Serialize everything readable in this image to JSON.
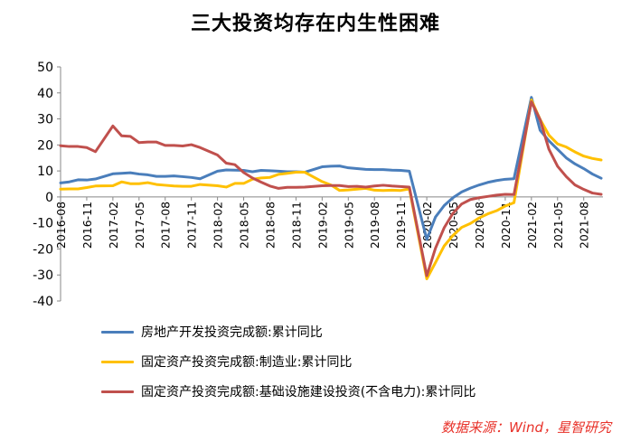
{
  "chart_data": {
    "type": "line",
    "title": "三大投资均存在内生性困难",
    "source_note": "数据来源：Wind，星智研究",
    "ylim": [
      -40,
      50
    ],
    "yticks": [
      -40,
      -30,
      -20,
      -10,
      0,
      10,
      20,
      30,
      40,
      50
    ],
    "x": [
      "2016-08",
      "2016-09",
      "2016-10",
      "2016-11",
      "2016-12",
      "2017-01",
      "2017-02",
      "2017-03",
      "2017-04",
      "2017-05",
      "2017-06",
      "2017-07",
      "2017-08",
      "2017-09",
      "2017-10",
      "2017-11",
      "2017-12",
      "2018-01",
      "2018-02",
      "2018-03",
      "2018-04",
      "2018-05",
      "2018-06",
      "2018-07",
      "2018-08",
      "2018-09",
      "2018-10",
      "2018-11",
      "2018-12",
      "2019-01",
      "2019-02",
      "2019-03",
      "2019-04",
      "2019-05",
      "2019-06",
      "2019-07",
      "2019-08",
      "2019-09",
      "2019-10",
      "2019-11",
      "2019-12",
      "2020-01",
      "2020-02",
      "2020-03",
      "2020-04",
      "2020-05",
      "2020-06",
      "2020-07",
      "2020-08",
      "2020-09",
      "2020-10",
      "2020-11",
      "2020-12",
      "2021-01",
      "2021-02",
      "2021-03",
      "2021-04",
      "2021-05",
      "2021-06",
      "2021-07",
      "2021-08",
      "2021-09",
      "2021-10"
    ],
    "xtick_labels": [
      "2016-08",
      "2016-11",
      "2017-02",
      "2017-05",
      "2017-08",
      "2017-11",
      "2018-02",
      "2018-05",
      "2018-08",
      "2018-11",
      "2019-02",
      "2019-05",
      "2019-08",
      "2019-11",
      "2020-02",
      "2020-05",
      "2020-08",
      "2020-11",
      "2021-02",
      "2021-05",
      "2021-08"
    ],
    "series": [
      {
        "name": "房地产开发投资完成额:累计同比",
        "color": "#4a7ebb",
        "values": [
          5.4,
          5.8,
          6.6,
          6.5,
          6.9,
          null,
          8.9,
          9.1,
          9.3,
          8.8,
          8.5,
          7.9,
          7.9,
          8.1,
          7.8,
          7.5,
          7.0,
          null,
          9.9,
          10.4,
          10.3,
          10.2,
          9.7,
          10.2,
          10.1,
          9.9,
          9.7,
          9.7,
          9.5,
          null,
          11.6,
          11.8,
          11.9,
          11.2,
          10.9,
          10.6,
          10.5,
          10.5,
          10.3,
          10.2,
          9.9,
          null,
          -16.3,
          -7.7,
          -3.3,
          -0.3,
          1.9,
          3.4,
          4.6,
          5.6,
          6.3,
          6.8,
          7.0,
          null,
          38.3,
          25.6,
          21.6,
          18.3,
          15.0,
          12.7,
          10.9,
          8.8,
          7.2
        ]
      },
      {
        "name": "固定资产投资完成额:制造业:累计同比",
        "color": "#ffc000",
        "values": [
          3.0,
          3.1,
          3.1,
          3.6,
          4.2,
          null,
          4.3,
          5.8,
          5.1,
          5.1,
          5.5,
          4.8,
          4.5,
          4.2,
          4.1,
          4.1,
          4.8,
          null,
          4.3,
          3.8,
          5.2,
          5.2,
          6.8,
          7.3,
          7.5,
          8.7,
          9.1,
          9.5,
          9.5,
          null,
          5.9,
          4.6,
          2.5,
          2.7,
          3.0,
          3.3,
          2.6,
          2.5,
          2.6,
          2.5,
          3.1,
          null,
          -31.5,
          -25.2,
          -18.8,
          -14.8,
          -11.7,
          -10.2,
          -8.1,
          -6.5,
          -5.3,
          -3.5,
          -2.2,
          null,
          37.3,
          29.8,
          23.8,
          20.4,
          19.2,
          17.3,
          15.7,
          14.8,
          14.2
        ]
      },
      {
        "name": "固定资产投资完成额:基础设施建设投资(不含电力):累计同比",
        "color": "#c0504d",
        "values": [
          19.7,
          19.4,
          19.4,
          19.0,
          17.4,
          null,
          27.3,
          23.5,
          23.3,
          20.9,
          21.1,
          21.1,
          19.8,
          19.8,
          19.6,
          20.1,
          19.0,
          null,
          16.1,
          13.0,
          12.4,
          9.4,
          7.3,
          5.7,
          4.2,
          3.3,
          3.7,
          3.7,
          3.8,
          null,
          4.3,
          4.4,
          4.4,
          4.0,
          4.1,
          3.8,
          4.2,
          4.5,
          4.2,
          4.0,
          3.8,
          null,
          -30.3,
          -19.7,
          -11.8,
          -6.3,
          -2.7,
          -1.0,
          -0.3,
          0.2,
          0.7,
          1.0,
          0.9,
          null,
          36.6,
          29.7,
          18.4,
          11.8,
          7.8,
          4.6,
          2.9,
          1.5,
          1.0
        ]
      }
    ]
  }
}
